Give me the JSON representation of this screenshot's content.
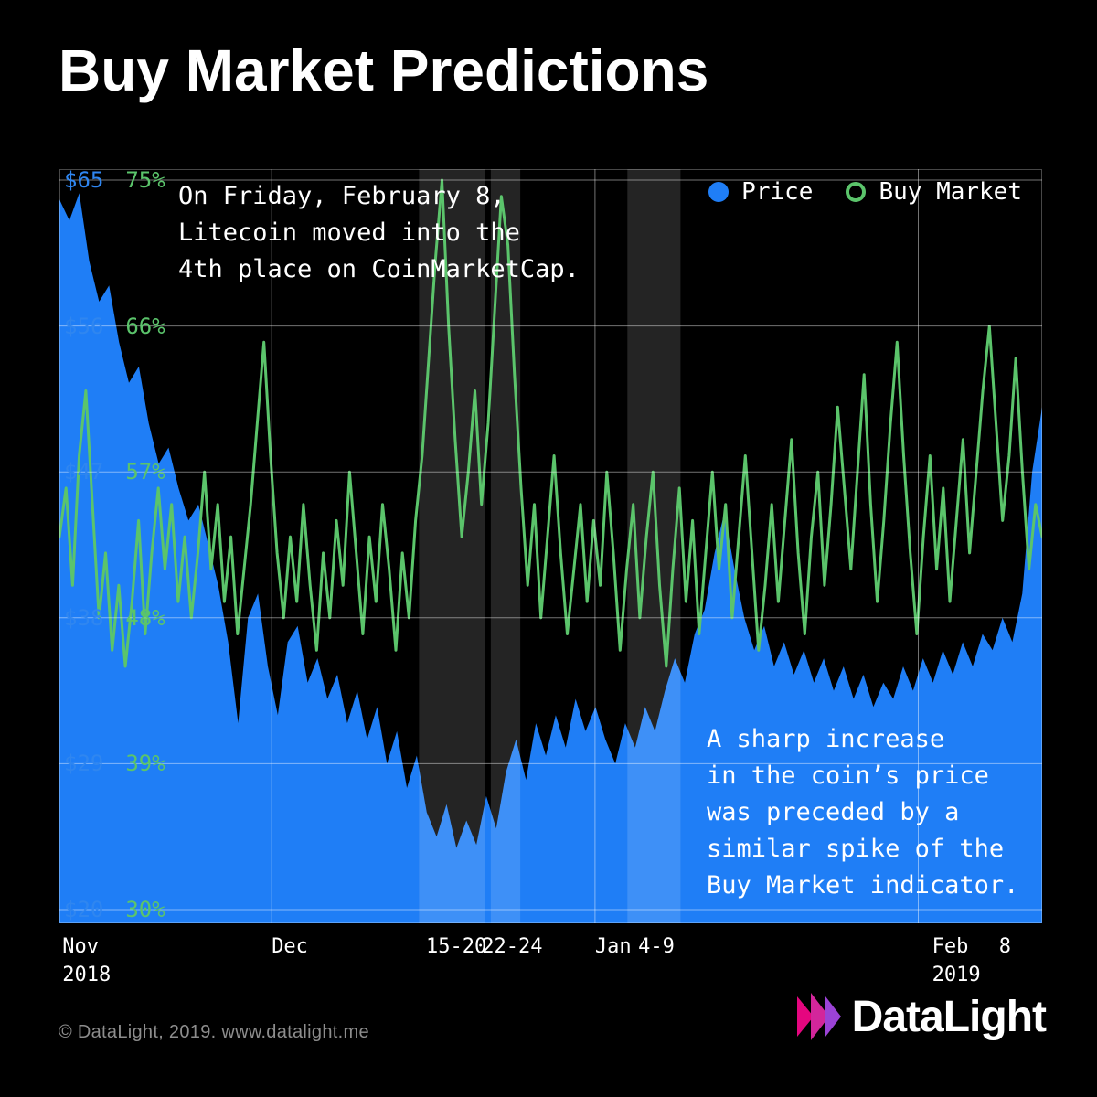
{
  "title": "Buy Market Predictions",
  "legend": [
    {
      "label": "Price",
      "color": "#1f7ef6",
      "marker": "filled-dot"
    },
    {
      "label": "Buy Market",
      "color": "#5bc46b",
      "marker": "ring"
    }
  ],
  "annotations": {
    "top": "On Friday, February 8,\nLitecoin moved into the\n4th place on CoinMarketCap.",
    "bottom": "A sharp increase\nin the coin’s price\nwas preceded by a\nsimilar spike of the\nBuy Market indicator."
  },
  "footer": {
    "copyright": "© DataLight, 2019. www.datalight.me",
    "brand": "DataLight",
    "brand_colors": [
      "#e5067f",
      "#d3269b",
      "#9b43d6"
    ]
  },
  "chart_data": {
    "type": "area+line",
    "background": "#000000",
    "grid": true,
    "y_left": {
      "name": "Price (USD)",
      "min": 20,
      "max": 65,
      "color": "#2f86f0"
    },
    "y_right": {
      "name": "Buy Market (%)",
      "min": 30,
      "max": 75,
      "color": "#5bc46b"
    },
    "y_ticks": [
      {
        "price": "$65",
        "pct": "75%"
      },
      {
        "price": "$56",
        "pct": "66%"
      },
      {
        "price": "$47",
        "pct": "57%"
      },
      {
        "price": "$38",
        "pct": "48%"
      },
      {
        "price": "$29",
        "pct": "39%"
      },
      {
        "price": "$20",
        "pct": "30%"
      }
    ],
    "x_ticks": [
      {
        "label": "Nov",
        "sub": "2018",
        "pos": 0.003
      },
      {
        "label": "Dec",
        "pos": 0.216
      },
      {
        "label": "15-20",
        "pos": 0.373
      },
      {
        "label": "22-24",
        "pos": 0.43
      },
      {
        "label": "Jan",
        "pos": 0.545
      },
      {
        "label": "4-9",
        "pos": 0.589
      },
      {
        "label": "Feb",
        "sub": "2019",
        "pos": 0.888
      },
      {
        "label": "8",
        "pos": 0.956
      }
    ],
    "vertical_gridlines": [
      0.216,
      0.545,
      0.874
    ],
    "highlight_bands": [
      {
        "x0": 0.366,
        "x1": 0.433
      },
      {
        "x0": 0.439,
        "x1": 0.469
      },
      {
        "x0": 0.578,
        "x1": 0.632
      }
    ],
    "series": [
      {
        "name": "Price",
        "type": "area",
        "color": "#1f7ef6",
        "unit": "USD",
        "values": [
          63.8,
          62.5,
          64.2,
          60.0,
          57.5,
          58.5,
          55.0,
          52.5,
          53.5,
          50.0,
          47.5,
          48.5,
          46.0,
          44.0,
          45.0,
          42.5,
          40.0,
          36.5,
          31.5,
          38.0,
          39.5,
          35.0,
          32.0,
          36.5,
          37.5,
          34.0,
          35.5,
          33.0,
          34.5,
          31.5,
          33.5,
          30.5,
          32.5,
          29.0,
          31.0,
          27.5,
          29.5,
          26.0,
          24.5,
          26.5,
          23.8,
          25.5,
          24.0,
          27.0,
          25.0,
          28.5,
          30.5,
          28.0,
          31.5,
          29.5,
          32.0,
          30.0,
          33.0,
          31.0,
          32.5,
          30.5,
          29.0,
          31.5,
          30.0,
          32.5,
          31.0,
          33.5,
          35.5,
          34.0,
          37.0,
          38.5,
          42.0,
          44.5,
          41.0,
          38.0,
          36.0,
          37.5,
          35.0,
          36.5,
          34.5,
          36.0,
          34.0,
          35.5,
          33.5,
          35.0,
          33.0,
          34.5,
          32.5,
          34.0,
          33.0,
          35.0,
          33.5,
          35.5,
          34.0,
          36.0,
          34.5,
          36.5,
          35.0,
          37.0,
          36.0,
          38.0,
          36.5,
          39.5,
          47.0,
          51.0
        ]
      },
      {
        "name": "Buy Market",
        "type": "line",
        "color": "#5bc46b",
        "unit": "%",
        "values": [
          53,
          56,
          50,
          58,
          62,
          55,
          48,
          52,
          46,
          50,
          45,
          49,
          54,
          47,
          52,
          56,
          51,
          55,
          49,
          53,
          48,
          52,
          57,
          51,
          55,
          49,
          53,
          47,
          51,
          55,
          60,
          65,
          58,
          52,
          48,
          53,
          49,
          55,
          50,
          46,
          52,
          48,
          54,
          50,
          57,
          52,
          47,
          53,
          49,
          55,
          51,
          46,
          52,
          48,
          54,
          58,
          64,
          70,
          75,
          66,
          59,
          53,
          57,
          62,
          55,
          60,
          67,
          74,
          71,
          63,
          56,
          50,
          55,
          48,
          53,
          58,
          52,
          47,
          51,
          55,
          49,
          54,
          50,
          57,
          52,
          46,
          51,
          55,
          48,
          53,
          57,
          50,
          45,
          51,
          56,
          49,
          54,
          47,
          52,
          57,
          51,
          55,
          48,
          53,
          58,
          52,
          46,
          50,
          55,
          49,
          54,
          59,
          52,
          47,
          53,
          57,
          50,
          55,
          61,
          56,
          51,
          57,
          63,
          55,
          49,
          54,
          60,
          65,
          58,
          52,
          47,
          53,
          58,
          51,
          56,
          49,
          54,
          59,
          52,
          57,
          62,
          66,
          60,
          54,
          58,
          64,
          57,
          51,
          55,
          53
        ]
      }
    ]
  }
}
